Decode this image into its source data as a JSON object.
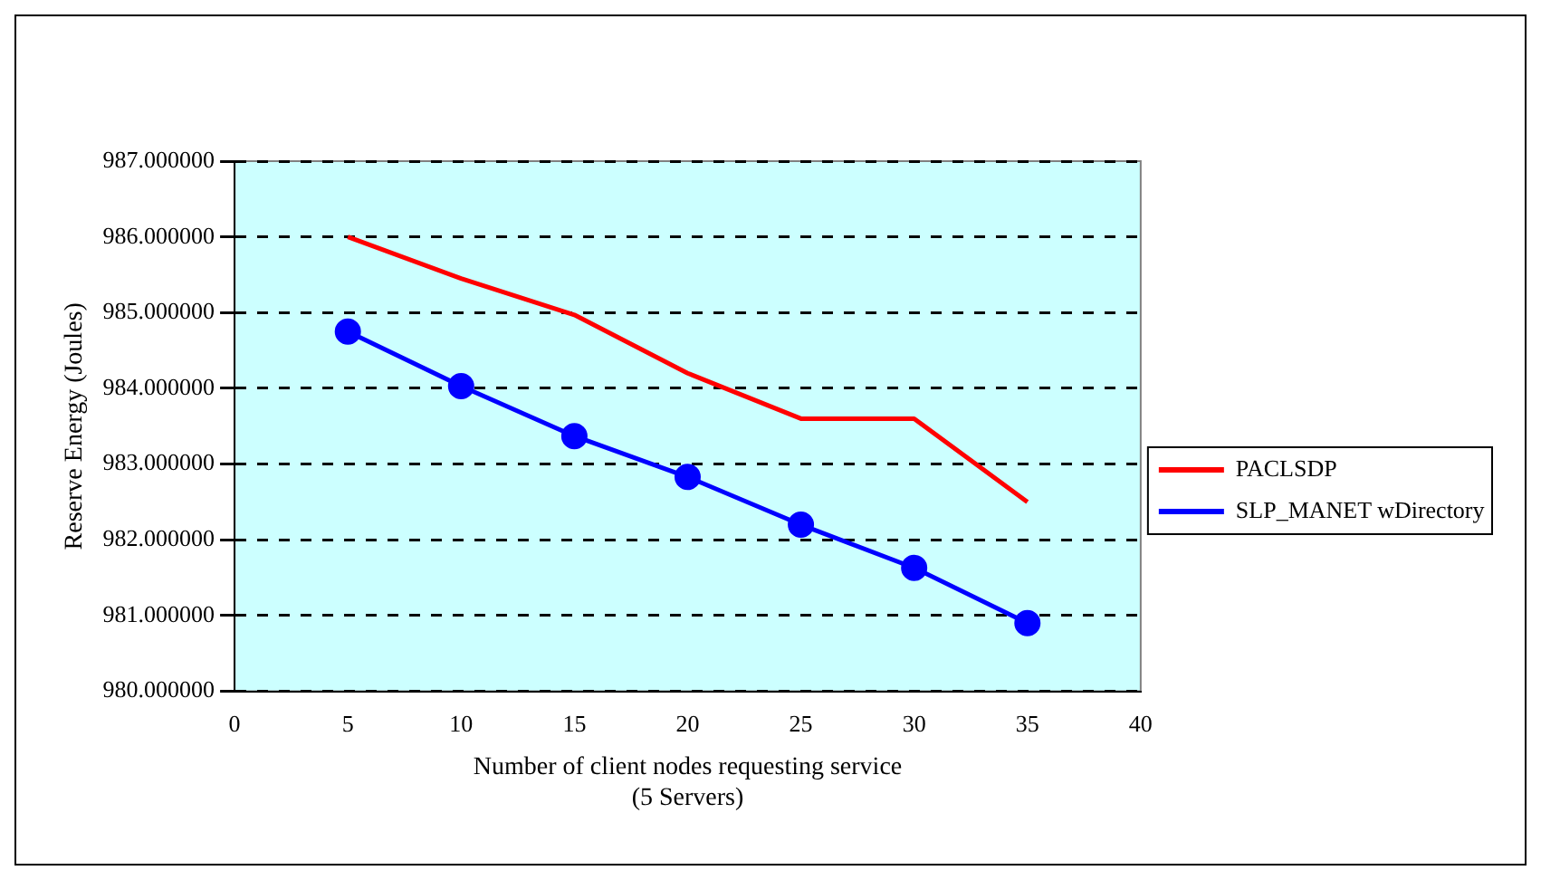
{
  "chart_data": {
    "type": "line",
    "xlabel": "Number of client nodes requesting service\n(5 Servers)",
    "ylabel": "Reserve Energy (Joules)",
    "x": [
      5,
      10,
      15,
      20,
      25,
      30,
      35
    ],
    "series": [
      {
        "name": "PACLSDP",
        "color": "#ff0000",
        "values": [
          986.0,
          985.45,
          984.97,
          984.2,
          983.6,
          983.6,
          982.5
        ],
        "marker": "none"
      },
      {
        "name": "SLP_MANET wDirectory",
        "color": "#0000ff",
        "values": [
          984.75,
          984.03,
          983.37,
          982.83,
          982.2,
          981.63,
          980.9
        ],
        "marker": "circle"
      }
    ],
    "xlim": [
      0,
      40
    ],
    "xticks": [
      0,
      5,
      10,
      15,
      20,
      25,
      30,
      35,
      40
    ],
    "ylim": [
      980,
      987
    ],
    "yticks": [
      {
        "value": 980,
        "label": "980.000000"
      },
      {
        "value": 981,
        "label": "981.000000"
      },
      {
        "value": 982,
        "label": "982.000000"
      },
      {
        "value": 983,
        "label": "983.000000"
      },
      {
        "value": 984,
        "label": "984.000000"
      },
      {
        "value": 985,
        "label": "985.000000"
      },
      {
        "value": 986,
        "label": "986.000000"
      },
      {
        "value": 987,
        "label": "987.000000"
      }
    ],
    "grid": "y",
    "legend": "right",
    "line_style": "solid"
  }
}
